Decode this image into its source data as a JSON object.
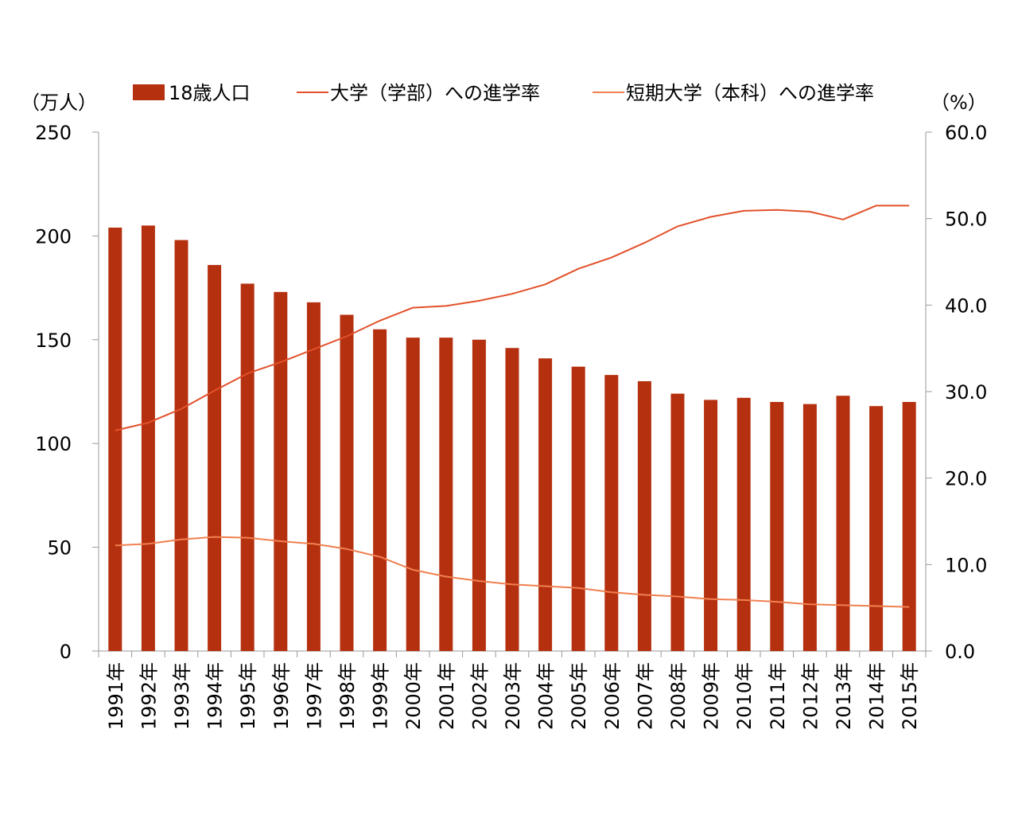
{
  "chart_data": {
    "type": "bar",
    "title": "",
    "categories": [
      "1991年",
      "1992年",
      "1993年",
      "1994年",
      "1995年",
      "1996年",
      "1997年",
      "1998年",
      "1999年",
      "2000年",
      "2001年",
      "2002年",
      "2003年",
      "2004年",
      "2005年",
      "2006年",
      "2007年",
      "2008年",
      "2009年",
      "2010年",
      "2011年",
      "2012年",
      "2013年",
      "2014年",
      "2015年"
    ],
    "left_axis": {
      "unit_label": "（万人）",
      "min": 0,
      "max": 250,
      "step": 50,
      "ticks": [
        "0",
        "50",
        "100",
        "150",
        "200",
        "250"
      ]
    },
    "right_axis": {
      "unit_label": "（%）",
      "min": 0,
      "max": 60,
      "step": 10,
      "ticks": [
        "0.0",
        "10.0",
        "20.0",
        "30.0",
        "40.0",
        "50.0",
        "60.0"
      ]
    },
    "series": [
      {
        "name": "18歳人口",
        "kind": "bar",
        "axis": "left",
        "color": "#B5300F",
        "values": [
          204,
          205,
          198,
          186,
          177,
          173,
          168,
          162,
          155,
          151,
          151,
          150,
          146,
          141,
          137,
          133,
          130,
          124,
          121,
          122,
          120,
          119,
          123,
          118,
          120
        ]
      },
      {
        "name": "大学（学部）への進学率",
        "kind": "line",
        "axis": "right",
        "color": "#E2512B",
        "values": [
          25.5,
          26.4,
          28.0,
          30.1,
          32.1,
          33.4,
          34.9,
          36.4,
          38.2,
          39.7,
          39.9,
          40.5,
          41.3,
          42.4,
          44.2,
          45.5,
          47.2,
          49.1,
          50.2,
          50.9,
          51.0,
          50.8,
          49.9,
          51.5,
          51.5
        ]
      },
      {
        "name": "短期大学（本科）への進学率",
        "kind": "line",
        "axis": "right",
        "color": "#F08050",
        "values": [
          12.2,
          12.4,
          12.9,
          13.2,
          13.1,
          12.7,
          12.4,
          11.8,
          10.9,
          9.4,
          8.6,
          8.1,
          7.7,
          7.5,
          7.3,
          6.8,
          6.5,
          6.3,
          6.0,
          5.9,
          5.7,
          5.4,
          5.3,
          5.2,
          5.1
        ]
      }
    ],
    "legend_position": "top",
    "grid": false
  }
}
